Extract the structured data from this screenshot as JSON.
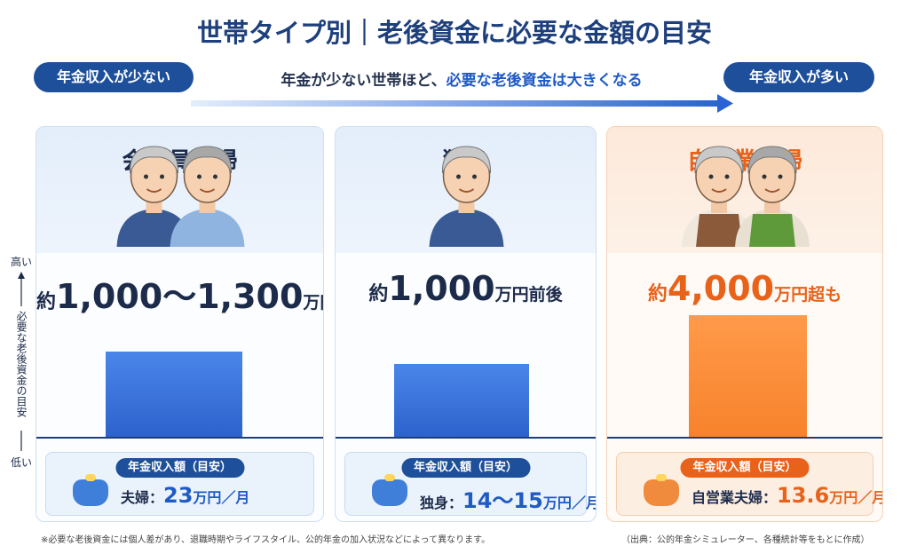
{
  "title": "世帯タイプ別｜老後資金に必要な金額の目安",
  "banner": {
    "left_badge": "年金収入が少ない",
    "message": "年金が少ない世帯ほど、",
    "message_highlight": "必要な老後資金は大きくなる",
    "right_badge": "年金収入が多い"
  },
  "axis": {
    "top": "高い",
    "label": "必要な老後資金の目安",
    "bottom": "低い"
  },
  "cards": [
    {
      "title": "会社員夫婦",
      "prefix": "約",
      "amount": "1,000〜1,300",
      "unit": "万円",
      "income_label": "年金収入額（目安）",
      "income_who": "夫婦：",
      "income_value": "23",
      "income_unit": "万円／月"
    },
    {
      "title": "独身",
      "prefix": "約",
      "amount": "1,000",
      "unit": "万円前後",
      "income_label": "年金収入額（目安）",
      "income_who": "独身：",
      "income_value": "14〜15",
      "income_unit": "万円／月"
    },
    {
      "title": "自営業夫婦",
      "prefix": "約",
      "amount": "4,000",
      "unit": "万円超も",
      "income_label": "年金収入額（目安）",
      "income_who": "自営業夫婦：",
      "income_value": "13.6",
      "income_unit": "万円／月"
    }
  ],
  "footnote": "※必要な老後資金には個人差があり、退職時期やライフスタイル、公的年金の加入状況などによって異なります。",
  "source": "（出典：公的年金シミュレーター、各種統計等をもとに作成）"
}
